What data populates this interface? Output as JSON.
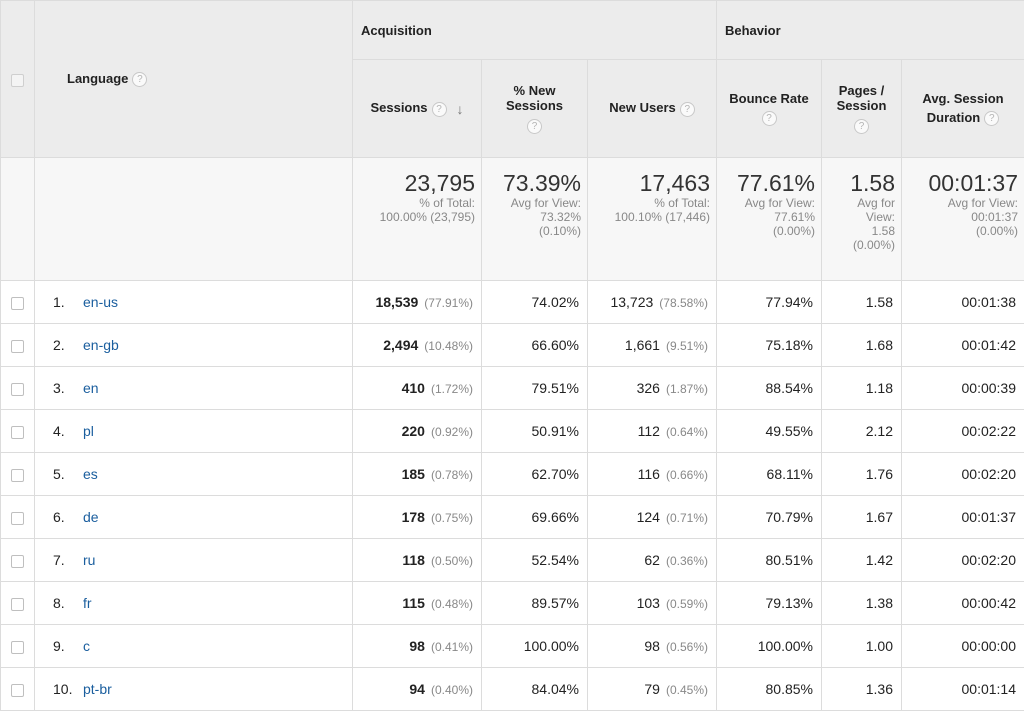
{
  "header": {
    "language_label": "Language",
    "acquisition_label": "Acquisition",
    "behavior_label": "Behavior",
    "help_glyph": "?",
    "sort_glyph": "↓",
    "columns": {
      "sessions": "Sessions",
      "pct_new_sessions_line1": "% New",
      "pct_new_sessions_line2": "Sessions",
      "new_users": "New Users",
      "bounce_rate": "Bounce Rate",
      "pages_session_line1": "Pages /",
      "pages_session_line2": "Session",
      "avg_session_line1": "Avg. Session",
      "avg_session_line2": "Duration"
    }
  },
  "summary": {
    "sessions": {
      "value": "23,795",
      "line1": "% of Total:",
      "line2": "100.00% (23,795)"
    },
    "pct_new": {
      "value": "73.39%",
      "line1": "Avg for View:",
      "line2": "73.32%",
      "line3": "(0.10%)"
    },
    "new_users": {
      "value": "17,463",
      "line1": "% of Total:",
      "line2": "100.10% (17,446)"
    },
    "bounce_rate": {
      "value": "77.61%",
      "line1": "Avg for View:",
      "line2": "77.61%",
      "line3": "(0.00%)"
    },
    "pages_session": {
      "value": "1.58",
      "line1": "Avg for",
      "line2": "View:",
      "line3": "1.58",
      "line4": "(0.00%)"
    },
    "avg_duration": {
      "value": "00:01:37",
      "line1": "Avg for View:",
      "line2": "00:01:37",
      "line3": "(0.00%)"
    }
  },
  "rows": [
    {
      "index": "1.",
      "language": "en-us",
      "sessions": "18,539",
      "sessions_pct": "(77.91%)",
      "pct_new": "74.02%",
      "new_users": "13,723",
      "new_users_pct": "(78.58%)",
      "bounce_rate": "77.94%",
      "pages_session": "1.58",
      "avg_duration": "00:01:38"
    },
    {
      "index": "2.",
      "language": "en-gb",
      "sessions": "2,494",
      "sessions_pct": "(10.48%)",
      "pct_new": "66.60%",
      "new_users": "1,661",
      "new_users_pct": "(9.51%)",
      "bounce_rate": "75.18%",
      "pages_session": "1.68",
      "avg_duration": "00:01:42"
    },
    {
      "index": "3.",
      "language": "en",
      "sessions": "410",
      "sessions_pct": "(1.72%)",
      "pct_new": "79.51%",
      "new_users": "326",
      "new_users_pct": "(1.87%)",
      "bounce_rate": "88.54%",
      "pages_session": "1.18",
      "avg_duration": "00:00:39"
    },
    {
      "index": "4.",
      "language": "pl",
      "sessions": "220",
      "sessions_pct": "(0.92%)",
      "pct_new": "50.91%",
      "new_users": "112",
      "new_users_pct": "(0.64%)",
      "bounce_rate": "49.55%",
      "pages_session": "2.12",
      "avg_duration": "00:02:22"
    },
    {
      "index": "5.",
      "language": "es",
      "sessions": "185",
      "sessions_pct": "(0.78%)",
      "pct_new": "62.70%",
      "new_users": "116",
      "new_users_pct": "(0.66%)",
      "bounce_rate": "68.11%",
      "pages_session": "1.76",
      "avg_duration": "00:02:20"
    },
    {
      "index": "6.",
      "language": "de",
      "sessions": "178",
      "sessions_pct": "(0.75%)",
      "pct_new": "69.66%",
      "new_users": "124",
      "new_users_pct": "(0.71%)",
      "bounce_rate": "70.79%",
      "pages_session": "1.67",
      "avg_duration": "00:01:37"
    },
    {
      "index": "7.",
      "language": "ru",
      "sessions": "118",
      "sessions_pct": "(0.50%)",
      "pct_new": "52.54%",
      "new_users": "62",
      "new_users_pct": "(0.36%)",
      "bounce_rate": "80.51%",
      "pages_session": "1.42",
      "avg_duration": "00:02:20"
    },
    {
      "index": "8.",
      "language": "fr",
      "sessions": "115",
      "sessions_pct": "(0.48%)",
      "pct_new": "89.57%",
      "new_users": "103",
      "new_users_pct": "(0.59%)",
      "bounce_rate": "79.13%",
      "pages_session": "1.38",
      "avg_duration": "00:00:42"
    },
    {
      "index": "9.",
      "language": "c",
      "sessions": "98",
      "sessions_pct": "(0.41%)",
      "pct_new": "100.00%",
      "new_users": "98",
      "new_users_pct": "(0.56%)",
      "bounce_rate": "100.00%",
      "pages_session": "1.00",
      "avg_duration": "00:00:00"
    },
    {
      "index": "10.",
      "language": "pt-br",
      "sessions": "94",
      "sessions_pct": "(0.40%)",
      "pct_new": "84.04%",
      "new_users": "79",
      "new_users_pct": "(0.45%)",
      "bounce_rate": "80.85%",
      "pages_session": "1.36",
      "avg_duration": "00:01:14"
    }
  ]
}
